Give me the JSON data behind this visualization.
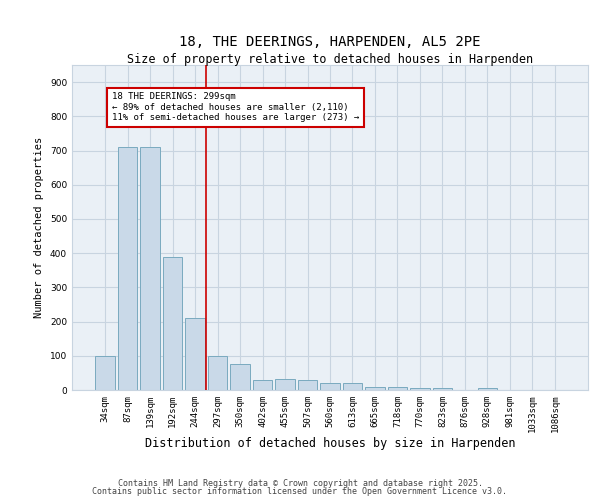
{
  "title1": "18, THE DEERINGS, HARPENDEN, AL5 2PE",
  "title2": "Size of property relative to detached houses in Harpenden",
  "xlabel": "Distribution of detached houses by size in Harpenden",
  "ylabel": "Number of detached properties",
  "categories": [
    "34sqm",
    "87sqm",
    "139sqm",
    "192sqm",
    "244sqm",
    "297sqm",
    "350sqm",
    "402sqm",
    "455sqm",
    "507sqm",
    "560sqm",
    "613sqm",
    "665sqm",
    "718sqm",
    "770sqm",
    "823sqm",
    "876sqm",
    "928sqm",
    "981sqm",
    "1033sqm",
    "1086sqm"
  ],
  "values": [
    100,
    710,
    710,
    390,
    210,
    100,
    75,
    30,
    32,
    30,
    20,
    20,
    8,
    8,
    7,
    7,
    0,
    5,
    0,
    0,
    0
  ],
  "bar_color": "#c9d9e8",
  "bar_edge_color": "#7aaabf",
  "marker_index": 5,
  "marker_color": "#cc0000",
  "annotation_text": "18 THE DEERINGS: 299sqm\n← 89% of detached houses are smaller (2,110)\n11% of semi-detached houses are larger (273) →",
  "annotation_box_color": "#cc0000",
  "ylim": [
    0,
    950
  ],
  "yticks": [
    0,
    100,
    200,
    300,
    400,
    500,
    600,
    700,
    800,
    900
  ],
  "grid_color": "#c8d4e0",
  "background_color": "#eaf0f6",
  "footer1": "Contains HM Land Registry data © Crown copyright and database right 2025.",
  "footer2": "Contains public sector information licensed under the Open Government Licence v3.0.",
  "title_fontsize": 10,
  "subtitle_fontsize": 8.5,
  "tick_fontsize": 6.5,
  "ylabel_fontsize": 7.5,
  "xlabel_fontsize": 8.5,
  "footer_fontsize": 6.0
}
